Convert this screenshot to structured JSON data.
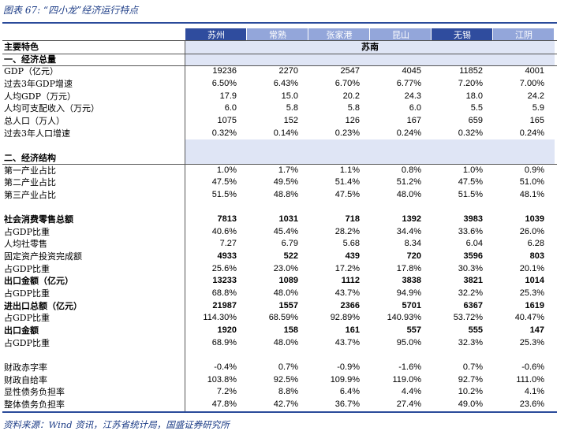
{
  "header": {
    "title": "图表 67:  “四小龙”经济运行特点"
  },
  "table": {
    "corner": "主要特色",
    "columns": [
      "苏州",
      "常熟",
      "张家港",
      "昆山",
      "无锡",
      "江阴"
    ],
    "column_dark": [
      true,
      false,
      false,
      false,
      true,
      false
    ],
    "region": "苏南",
    "sections": [
      {
        "heading": "一、经济总量",
        "rows": [
          {
            "label": "GDP（亿元）",
            "values": [
              "19236",
              "2270",
              "2547",
              "4045",
              "11852",
              "4001"
            ]
          },
          {
            "label": "过去3年GDP增速",
            "values": [
              "6.50%",
              "6.43%",
              "6.70%",
              "6.77%",
              "7.20%",
              "7.00%"
            ]
          },
          {
            "label": "人均GDP（万元）",
            "values": [
              "17.9",
              "15.0",
              "20.2",
              "24.3",
              "18.0",
              "24.2"
            ]
          },
          {
            "label": "人均可支配收入（万元）",
            "values": [
              "6.0",
              "5.8",
              "5.8",
              "6.0",
              "5.5",
              "5.9"
            ]
          },
          {
            "label": "总人口（万人）",
            "values": [
              "1075",
              "152",
              "126",
              "167",
              "659",
              "165"
            ]
          },
          {
            "label": "过去3年人口增速",
            "values": [
              "0.32%",
              "0.14%",
              "0.23%",
              "0.24%",
              "0.32%",
              "0.24%"
            ]
          }
        ]
      },
      {
        "heading": "二、经济结构",
        "rows": [
          {
            "label": "第一产业占比",
            "values": [
              "1.0%",
              "1.7%",
              "1.1%",
              "0.8%",
              "1.0%",
              "0.9%"
            ]
          },
          {
            "label": "第二产业占比",
            "values": [
              "47.5%",
              "49.5%",
              "51.4%",
              "51.2%",
              "47.5%",
              "51.0%"
            ]
          },
          {
            "label": "第三产业占比",
            "values": [
              "51.5%",
              "48.8%",
              "47.5%",
              "48.0%",
              "51.5%",
              "48.1%"
            ]
          }
        ]
      },
      {
        "rows": [
          {
            "label": "社会消费零售总额",
            "bold_label": true,
            "bold_values": true,
            "values": [
              "7813",
              "1031",
              "718",
              "1392",
              "3983",
              "1039"
            ]
          },
          {
            "label": "占GDP比重",
            "values": [
              "40.6%",
              "45.4%",
              "28.2%",
              "34.4%",
              "33.6%",
              "26.0%"
            ]
          },
          {
            "label": "人均社零售",
            "values": [
              "7.27",
              "6.79",
              "5.68",
              "8.34",
              "6.04",
              "6.28"
            ]
          },
          {
            "label": "固定资产投资完成额",
            "bold_values": true,
            "values": [
              "4933",
              "522",
              "439",
              "720",
              "3596",
              "803"
            ]
          },
          {
            "label": "占GDP比重",
            "values": [
              "25.6%",
              "23.0%",
              "17.2%",
              "17.8%",
              "30.3%",
              "20.1%"
            ]
          },
          {
            "label": "出口金额（亿元）",
            "bold_label": true,
            "bold_values": true,
            "values": [
              "13233",
              "1089",
              "1112",
              "3838",
              "3821",
              "1014"
            ]
          },
          {
            "label": "占GDP比重",
            "values": [
              "68.8%",
              "48.0%",
              "43.7%",
              "94.9%",
              "32.2%",
              "25.3%"
            ]
          },
          {
            "label": "进出口总额（亿元）",
            "bold_label": true,
            "bold_values": true,
            "values": [
              "21987",
              "1557",
              "2366",
              "5701",
              "6367",
              "1619"
            ]
          },
          {
            "label": "占GDP比重",
            "values": [
              "114.30%",
              "68.59%",
              "92.89%",
              "140.93%",
              "53.72%",
              "40.47%"
            ]
          },
          {
            "label": "出口金额",
            "bold_label": true,
            "bold_values": true,
            "values": [
              "1920",
              "158",
              "161",
              "557",
              "555",
              "147"
            ]
          },
          {
            "label": "占GDP比重",
            "values": [
              "68.9%",
              "48.0%",
              "43.7%",
              "95.0%",
              "32.3%",
              "25.3%"
            ]
          }
        ]
      },
      {
        "rows": [
          {
            "label": "财政赤字率",
            "values": [
              "-0.4%",
              "0.7%",
              "-0.9%",
              "-1.6%",
              "0.7%",
              "-0.6%"
            ]
          },
          {
            "label": "财政自给率",
            "values": [
              "103.8%",
              "92.5%",
              "109.9%",
              "119.0%",
              "92.7%",
              "111.0%"
            ]
          },
          {
            "label": "显性债务负担率",
            "values": [
              "7.2%",
              "8.8%",
              "6.4%",
              "4.4%",
              "10.2%",
              "4.1%"
            ]
          },
          {
            "label": "整体债务负担率",
            "values": [
              "47.8%",
              "42.7%",
              "36.7%",
              "27.4%",
              "49.0%",
              "23.6%"
            ]
          }
        ]
      }
    ]
  },
  "footer": {
    "source": "资料来源：Wind 资讯，江苏省统计局，国盛证券研究所"
  }
}
